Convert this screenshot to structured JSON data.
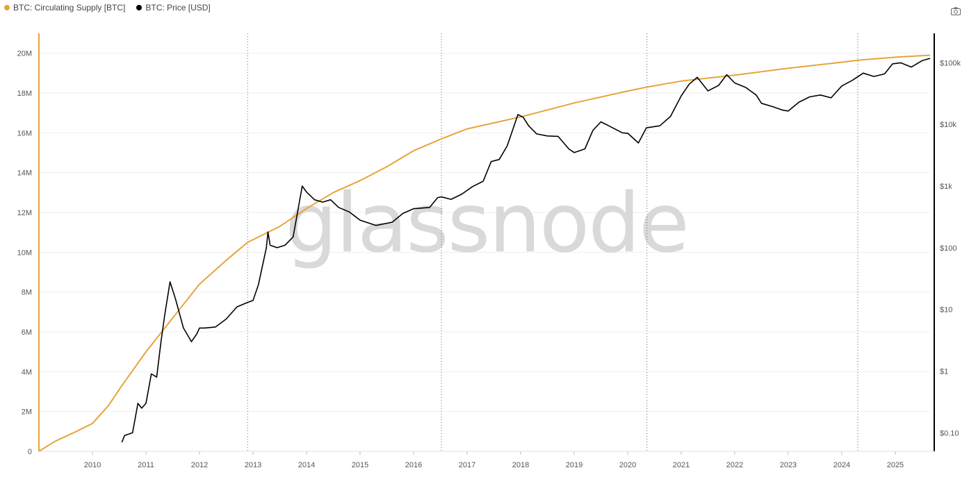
{
  "legend": {
    "supply_label": "BTC: Circulating Supply [BTC]",
    "price_label": "BTC: Price [USD]"
  },
  "watermark": "glassnode",
  "colors": {
    "supply": "#e8a33b",
    "price": "#000000",
    "grid": "#eeeeee",
    "halving": "#666666"
  },
  "icons": {
    "export": "camera-icon"
  },
  "chart_data": {
    "type": "line",
    "title": "",
    "xlabel": "",
    "ylabel_left": "",
    "ylabel_right": "",
    "x_range": [
      2009.0,
      2025.65
    ],
    "y_left_range": [
      0,
      21000000
    ],
    "y_right_range": [
      0.05,
      300000
    ],
    "y_right_scale": "log",
    "grid": true,
    "legend_position": "top-left",
    "x_ticks": [
      "2010",
      "2011",
      "2012",
      "2013",
      "2014",
      "2015",
      "2016",
      "2017",
      "2018",
      "2019",
      "2020",
      "2021",
      "2022",
      "2023",
      "2024",
      "2025"
    ],
    "y_left_ticks": [
      {
        "value": 0,
        "label": "0"
      },
      {
        "value": 2000000,
        "label": "2M"
      },
      {
        "value": 4000000,
        "label": "4M"
      },
      {
        "value": 6000000,
        "label": "6M"
      },
      {
        "value": 8000000,
        "label": "8M"
      },
      {
        "value": 10000000,
        "label": "10M"
      },
      {
        "value": 12000000,
        "label": "12M"
      },
      {
        "value": 14000000,
        "label": "14M"
      },
      {
        "value": 16000000,
        "label": "16M"
      },
      {
        "value": 18000000,
        "label": "18M"
      },
      {
        "value": 20000000,
        "label": "20M"
      }
    ],
    "y_right_ticks": [
      {
        "value": 0.1,
        "label": "$0.10"
      },
      {
        "value": 1,
        "label": "$1"
      },
      {
        "value": 10,
        "label": "$10"
      },
      {
        "value": 100,
        "label": "$100"
      },
      {
        "value": 1000,
        "label": "$1k"
      },
      {
        "value": 10000,
        "label": "$10k"
      },
      {
        "value": 100000,
        "label": "$100k"
      }
    ],
    "halvings": [
      2012.9,
      2016.52,
      2020.36,
      2024.3
    ],
    "series": [
      {
        "name": "BTC: Circulating Supply [BTC]",
        "axis": "left",
        "x": [
          2009.0,
          2009.3,
          2009.7,
          2010.0,
          2010.3,
          2010.55,
          2011.0,
          2011.5,
          2012.0,
          2012.5,
          2012.9,
          2013.5,
          2014.0,
          2014.5,
          2015.0,
          2015.5,
          2016.0,
          2016.52,
          2017.0,
          2018.0,
          2019.0,
          2020.0,
          2020.36,
          2021.0,
          2022.0,
          2023.0,
          2024.0,
          2024.3,
          2025.0,
          2025.65
        ],
        "values": [
          0,
          500000,
          1000000,
          1400000,
          2300000,
          3300000,
          5000000,
          6700000,
          8400000,
          9600000,
          10500000,
          11300000,
          12200000,
          13000000,
          13600000,
          14300000,
          15100000,
          15700000,
          16200000,
          16800000,
          17500000,
          18100000,
          18300000,
          18600000,
          18900000,
          19250000,
          19550000,
          19650000,
          19800000,
          19900000
        ]
      },
      {
        "name": "BTC: Price [USD]",
        "axis": "right",
        "x": [
          2010.55,
          2010.6,
          2010.75,
          2010.85,
          2010.92,
          2011.0,
          2011.1,
          2011.2,
          2011.28,
          2011.35,
          2011.45,
          2011.55,
          2011.7,
          2011.85,
          2011.95,
          2012.0,
          2012.1,
          2012.3,
          2012.5,
          2012.7,
          2012.9,
          2013.0,
          2013.1,
          2013.25,
          2013.28,
          2013.32,
          2013.45,
          2013.6,
          2013.75,
          2013.92,
          2014.0,
          2014.15,
          2014.3,
          2014.45,
          2014.6,
          2014.8,
          2015.0,
          2015.3,
          2015.6,
          2015.8,
          2016.0,
          2016.3,
          2016.45,
          2016.52,
          2016.7,
          2016.9,
          2017.1,
          2017.3,
          2017.45,
          2017.6,
          2017.75,
          2017.95,
          2018.05,
          2018.15,
          2018.3,
          2018.5,
          2018.7,
          2018.9,
          2019.0,
          2019.2,
          2019.35,
          2019.5,
          2019.7,
          2019.9,
          2020.0,
          2020.2,
          2020.35,
          2020.6,
          2020.8,
          2021.0,
          2021.15,
          2021.3,
          2021.5,
          2021.7,
          2021.85,
          2022.0,
          2022.2,
          2022.4,
          2022.5,
          2022.7,
          2022.9,
          2023.0,
          2023.2,
          2023.4,
          2023.6,
          2023.8,
          2024.0,
          2024.2,
          2024.4,
          2024.6,
          2024.8,
          2024.95,
          2025.1,
          2025.3,
          2025.5,
          2025.65
        ],
        "values": [
          0.07,
          0.09,
          0.1,
          0.3,
          0.25,
          0.3,
          0.9,
          0.8,
          3.0,
          8.0,
          28.0,
          15.0,
          5.0,
          3.0,
          4.0,
          5.0,
          5.0,
          5.2,
          7.0,
          11.0,
          13.0,
          14.0,
          25.0,
          100.0,
          180.0,
          110.0,
          100.0,
          110.0,
          150.0,
          1000.0,
          800.0,
          600.0,
          550.0,
          600.0,
          450.0,
          380.0,
          280.0,
          230.0,
          260.0,
          360.0,
          430.0,
          450.0,
          650.0,
          670.0,
          610.0,
          740.0,
          980.0,
          1200.0,
          2500.0,
          2700.0,
          4500.0,
          14500.0,
          13000.0,
          9500.0,
          7000.0,
          6500.0,
          6400.0,
          4000.0,
          3500.0,
          4000.0,
          8000.0,
          11000.0,
          9000.0,
          7300.0,
          7200.0,
          5000.0,
          8800.0,
          9500.0,
          13500.0,
          29000.0,
          45000.0,
          58000.0,
          35000.0,
          43000.0,
          64000.0,
          47000.0,
          40000.0,
          30000.0,
          22000.0,
          19500.0,
          17000.0,
          16500.0,
          23000.0,
          28000.0,
          30000.0,
          27000.0,
          42000.0,
          52000.0,
          68000.0,
          60000.0,
          66000.0,
          96000.0,
          100000.0,
          85000.0,
          108000.0,
          118000.0
        ]
      }
    ]
  }
}
